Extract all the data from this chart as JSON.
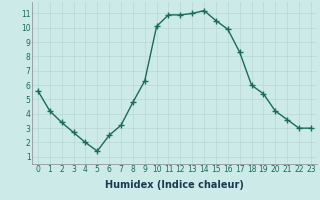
{
  "xlabel": "Humidex (Indice chaleur)",
  "ylabel": "",
  "x": [
    0,
    1,
    2,
    3,
    4,
    5,
    6,
    7,
    8,
    9,
    10,
    11,
    12,
    13,
    14,
    15,
    16,
    17,
    18,
    19,
    20,
    21,
    22,
    23
  ],
  "y": [
    5.6,
    4.2,
    3.4,
    2.7,
    2.0,
    1.4,
    2.5,
    3.2,
    4.8,
    6.3,
    10.1,
    10.9,
    10.9,
    11.0,
    11.2,
    10.5,
    9.9,
    8.3,
    6.0,
    5.4,
    4.2,
    3.6,
    3.0,
    3.0
  ],
  "line_color": "#1a6b5a",
  "marker": "+",
  "marker_size": 4,
  "marker_linewidth": 1.0,
  "line_width": 1.0,
  "background_color": "#cceae8",
  "grid_color": "#b8d8d4",
  "ylim_min": 0.5,
  "ylim_max": 11.8,
  "xlim_min": -0.5,
  "xlim_max": 23.5,
  "yticks": [
    1,
    2,
    3,
    4,
    5,
    6,
    7,
    8,
    9,
    10,
    11
  ],
  "xticks": [
    0,
    1,
    2,
    3,
    4,
    5,
    6,
    7,
    8,
    9,
    10,
    11,
    12,
    13,
    14,
    15,
    16,
    17,
    18,
    19,
    20,
    21,
    22,
    23
  ],
  "tick_fontsize": 5.5,
  "xlabel_fontsize": 7,
  "xlabel_fontweight": "bold",
  "spine_color": "#888888",
  "tick_color": "#1a6b5a",
  "label_color": "#1a3a50"
}
